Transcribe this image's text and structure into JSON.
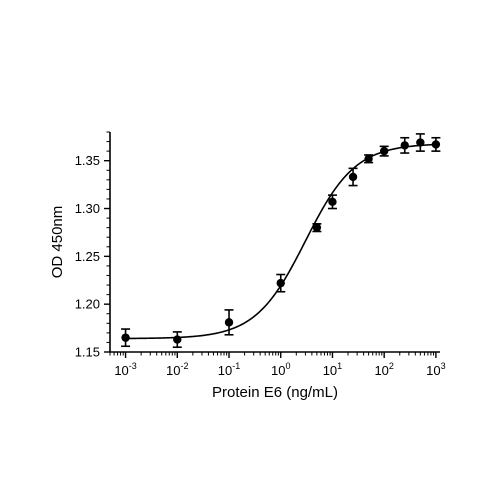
{
  "chart_data": {
    "type": "scatter",
    "title": "",
    "xlabel": "Protein E6 (ng/mL)",
    "ylabel": "OD 450nm",
    "xscale": "log",
    "xlim": [
      0.0005,
      1200
    ],
    "ylim": [
      1.15,
      1.38
    ],
    "x_ticks": [
      0.001,
      0.01,
      0.1,
      1,
      10,
      100,
      1000
    ],
    "x_tick_labels": [
      {
        "base": "10",
        "exp": "-3"
      },
      {
        "base": "10",
        "exp": "-2"
      },
      {
        "base": "10",
        "exp": "-1"
      },
      {
        "base": "10",
        "exp": "0"
      },
      {
        "base": "10",
        "exp": "1"
      },
      {
        "base": "10",
        "exp": "2"
      },
      {
        "base": "10",
        "exp": "3"
      }
    ],
    "y_ticks": [
      1.15,
      1.2,
      1.25,
      1.3,
      1.35
    ],
    "y_tick_labels": [
      "1.15",
      "1.20",
      "1.25",
      "1.30",
      "1.35"
    ],
    "grid": false,
    "legend": "none",
    "series": [
      {
        "points": [
          {
            "x": 0.001,
            "y": 1.165,
            "err": 0.009
          },
          {
            "x": 0.01,
            "y": 1.163,
            "err": 0.008
          },
          {
            "x": 0.1,
            "y": 1.181,
            "err": 0.013
          },
          {
            "x": 1,
            "y": 1.222,
            "err": 0.009
          },
          {
            "x": 5,
            "y": 1.28,
            "err": 0.004
          },
          {
            "x": 10,
            "y": 1.307,
            "err": 0.007
          },
          {
            "x": 25,
            "y": 1.333,
            "err": 0.009
          },
          {
            "x": 50,
            "y": 1.352,
            "err": 0.004
          },
          {
            "x": 100,
            "y": 1.36,
            "err": 0.005
          },
          {
            "x": 250,
            "y": 1.366,
            "err": 0.008
          },
          {
            "x": 500,
            "y": 1.369,
            "err": 0.009
          },
          {
            "x": 1000,
            "y": 1.367,
            "err": 0.007
          }
        ],
        "fit": {
          "model": "4PL",
          "bottom": 1.164,
          "top": 1.368,
          "ec50": 3.0,
          "hill": 0.9
        }
      }
    ],
    "colors": {
      "marker": "#000000",
      "line": "#000000",
      "axis": "#000000"
    }
  }
}
